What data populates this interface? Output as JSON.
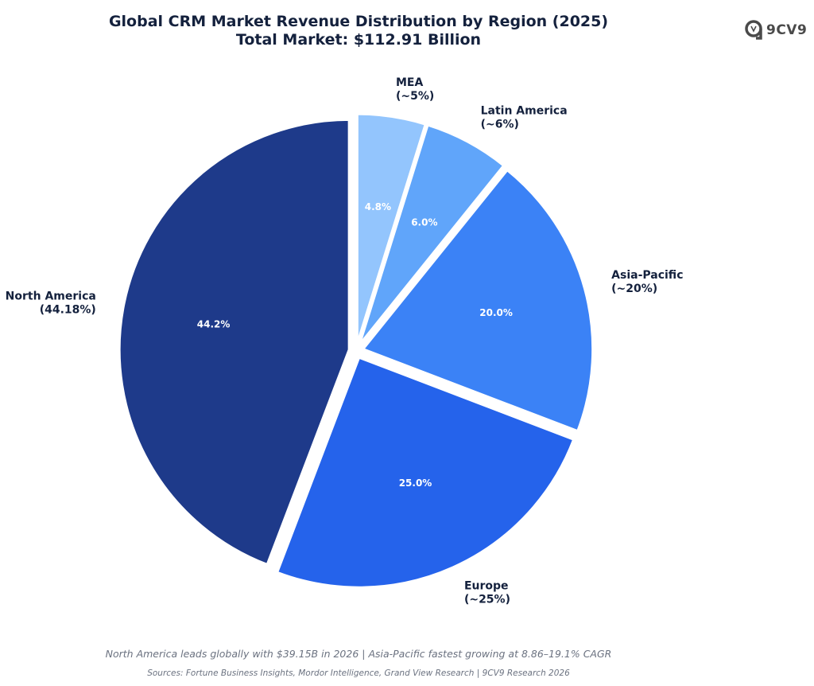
{
  "title_line1": "Global CRM Market Revenue Distribution by Region (2025)",
  "title_line2": "Total Market: $112.91 Billion",
  "logo": {
    "text": "9CV9",
    "icon": "9cv9-logo-icon"
  },
  "footnote": "North America leads globally with $39.15B in 2026 | Asia-Pacific fastest growing at 8.86–19.1% CAGR",
  "sources": "Sources: Fortune Business Insights, Mordor Intelligence, Grand View Research | 9CV9 Research 2026",
  "chart_data": {
    "type": "pie",
    "title": "Global CRM Market Revenue Distribution by Region (2025)",
    "subtitle": "Total Market: $112.91 Billion",
    "start_angle_deg": 90,
    "direction": "clockwise",
    "exploded": true,
    "slices": [
      {
        "label": "MEA",
        "label_sub": "(~5%)",
        "value": 4.8,
        "pct_text": "4.8%",
        "color": "#93c5fd"
      },
      {
        "label": "Latin America",
        "label_sub": "(~6%)",
        "value": 6.0,
        "pct_text": "6.0%",
        "color": "#60a5fa"
      },
      {
        "label": "Asia-Pacific",
        "label_sub": "(~20%)",
        "value": 20.0,
        "pct_text": "20.0%",
        "color": "#3b82f6"
      },
      {
        "label": "Europe",
        "label_sub": "(~25%)",
        "value": 25.0,
        "pct_text": "25.0%",
        "color": "#2563eb"
      },
      {
        "label": "North America",
        "label_sub": "(44.18%)",
        "value": 44.2,
        "pct_text": "44.2%",
        "color": "#1e3a8a"
      }
    ]
  }
}
